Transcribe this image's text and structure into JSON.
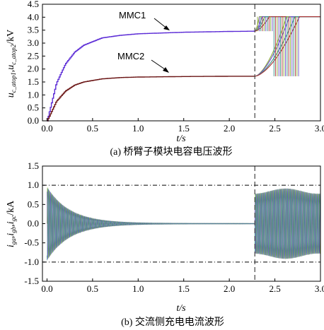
{
  "colors": {
    "mmc1": "#5b2bd6",
    "mmc2": "#6a1414",
    "ia": "#7a9e2a",
    "ib": "#6a46c8",
    "ic": "#2e8a80",
    "trans_a": "#8fae3a",
    "trans_b": "#6b4fc9",
    "trans_c": "#3a8f86",
    "trans_d": "#a83232"
  },
  "chart_data": [
    {
      "type": "line",
      "caption": "(a) 桥臂子模块电容电压波形",
      "xlabel": "t/s",
      "ylabel": "u_c_atop1, u_c_atop2 /kV",
      "ylabel_parts": {
        "u1": "u",
        "sub1": "c_atop1",
        "sep": ",",
        "u2": "u",
        "sub2": "c_atop2",
        "unit": "/kV"
      },
      "xlim": [
        -0.05,
        3.0
      ],
      "ylim": [
        0.0,
        4.5
      ],
      "xticks": [
        "0.0",
        "0.5",
        "1.0",
        "1.5",
        "2.0",
        "2.5",
        "3.0"
      ],
      "yticks": [
        "0.0",
        "0.5",
        "1.0",
        "1.5",
        "2.0",
        "2.5",
        "3.0",
        "3.5",
        "4.0",
        "4.5"
      ],
      "event_time": 2.28,
      "series": [
        {
          "name": "MMC1",
          "x": [
            0.0,
            0.1,
            0.2,
            0.3,
            0.4,
            0.6,
            0.8,
            1.0,
            1.5,
            2.0,
            2.28
          ],
          "values": [
            0.0,
            1.45,
            2.2,
            2.65,
            2.92,
            3.2,
            3.3,
            3.36,
            3.42,
            3.45,
            3.46
          ]
        },
        {
          "name": "MMC2",
          "x": [
            0.0,
            0.1,
            0.2,
            0.3,
            0.4,
            0.6,
            0.8,
            1.0,
            1.5,
            2.0,
            2.28
          ],
          "values": [
            0.0,
            0.75,
            1.15,
            1.38,
            1.5,
            1.62,
            1.67,
            1.69,
            1.71,
            1.72,
            1.72
          ]
        }
      ],
      "post_event_level": 4.02
    },
    {
      "type": "line",
      "caption": "(b) 交流侧充电电流波形",
      "xlabel": "t/s",
      "ylabel": "i_ga, i_gb, i_gc /kA",
      "ylabel_parts": {
        "i1": "i",
        "sub1": "ga",
        "sep1": ",",
        "i2": "i",
        "sub2": "gb",
        "sep2": ",",
        "i3": "i",
        "sub3": "gc",
        "unit": "/kA"
      },
      "xlim": [
        -0.05,
        3.0
      ],
      "ylim": [
        -1.5,
        1.5
      ],
      "xticks": [
        "0.0",
        "0.5",
        "1.0",
        "1.5",
        "2.0",
        "2.5",
        "3.0"
      ],
      "yticks": [
        "-1.5",
        "-1.0",
        "-0.5",
        "0.0",
        "0.5",
        "1.0",
        "1.5"
      ],
      "reference_lines": [
        1.0,
        -1.0
      ],
      "event_time": 2.28,
      "series": [
        {
          "name": "i_ga",
          "envelope_initial": 0.95,
          "decay_tau": 0.25,
          "post_event_amplitude": 0.85
        },
        {
          "name": "i_gb",
          "envelope_initial": 0.95,
          "decay_tau": 0.25,
          "post_event_amplitude": 0.85
        },
        {
          "name": "i_gc",
          "envelope_initial": 0.95,
          "decay_tau": 0.25,
          "post_event_amplitude": 0.85
        }
      ]
    }
  ]
}
